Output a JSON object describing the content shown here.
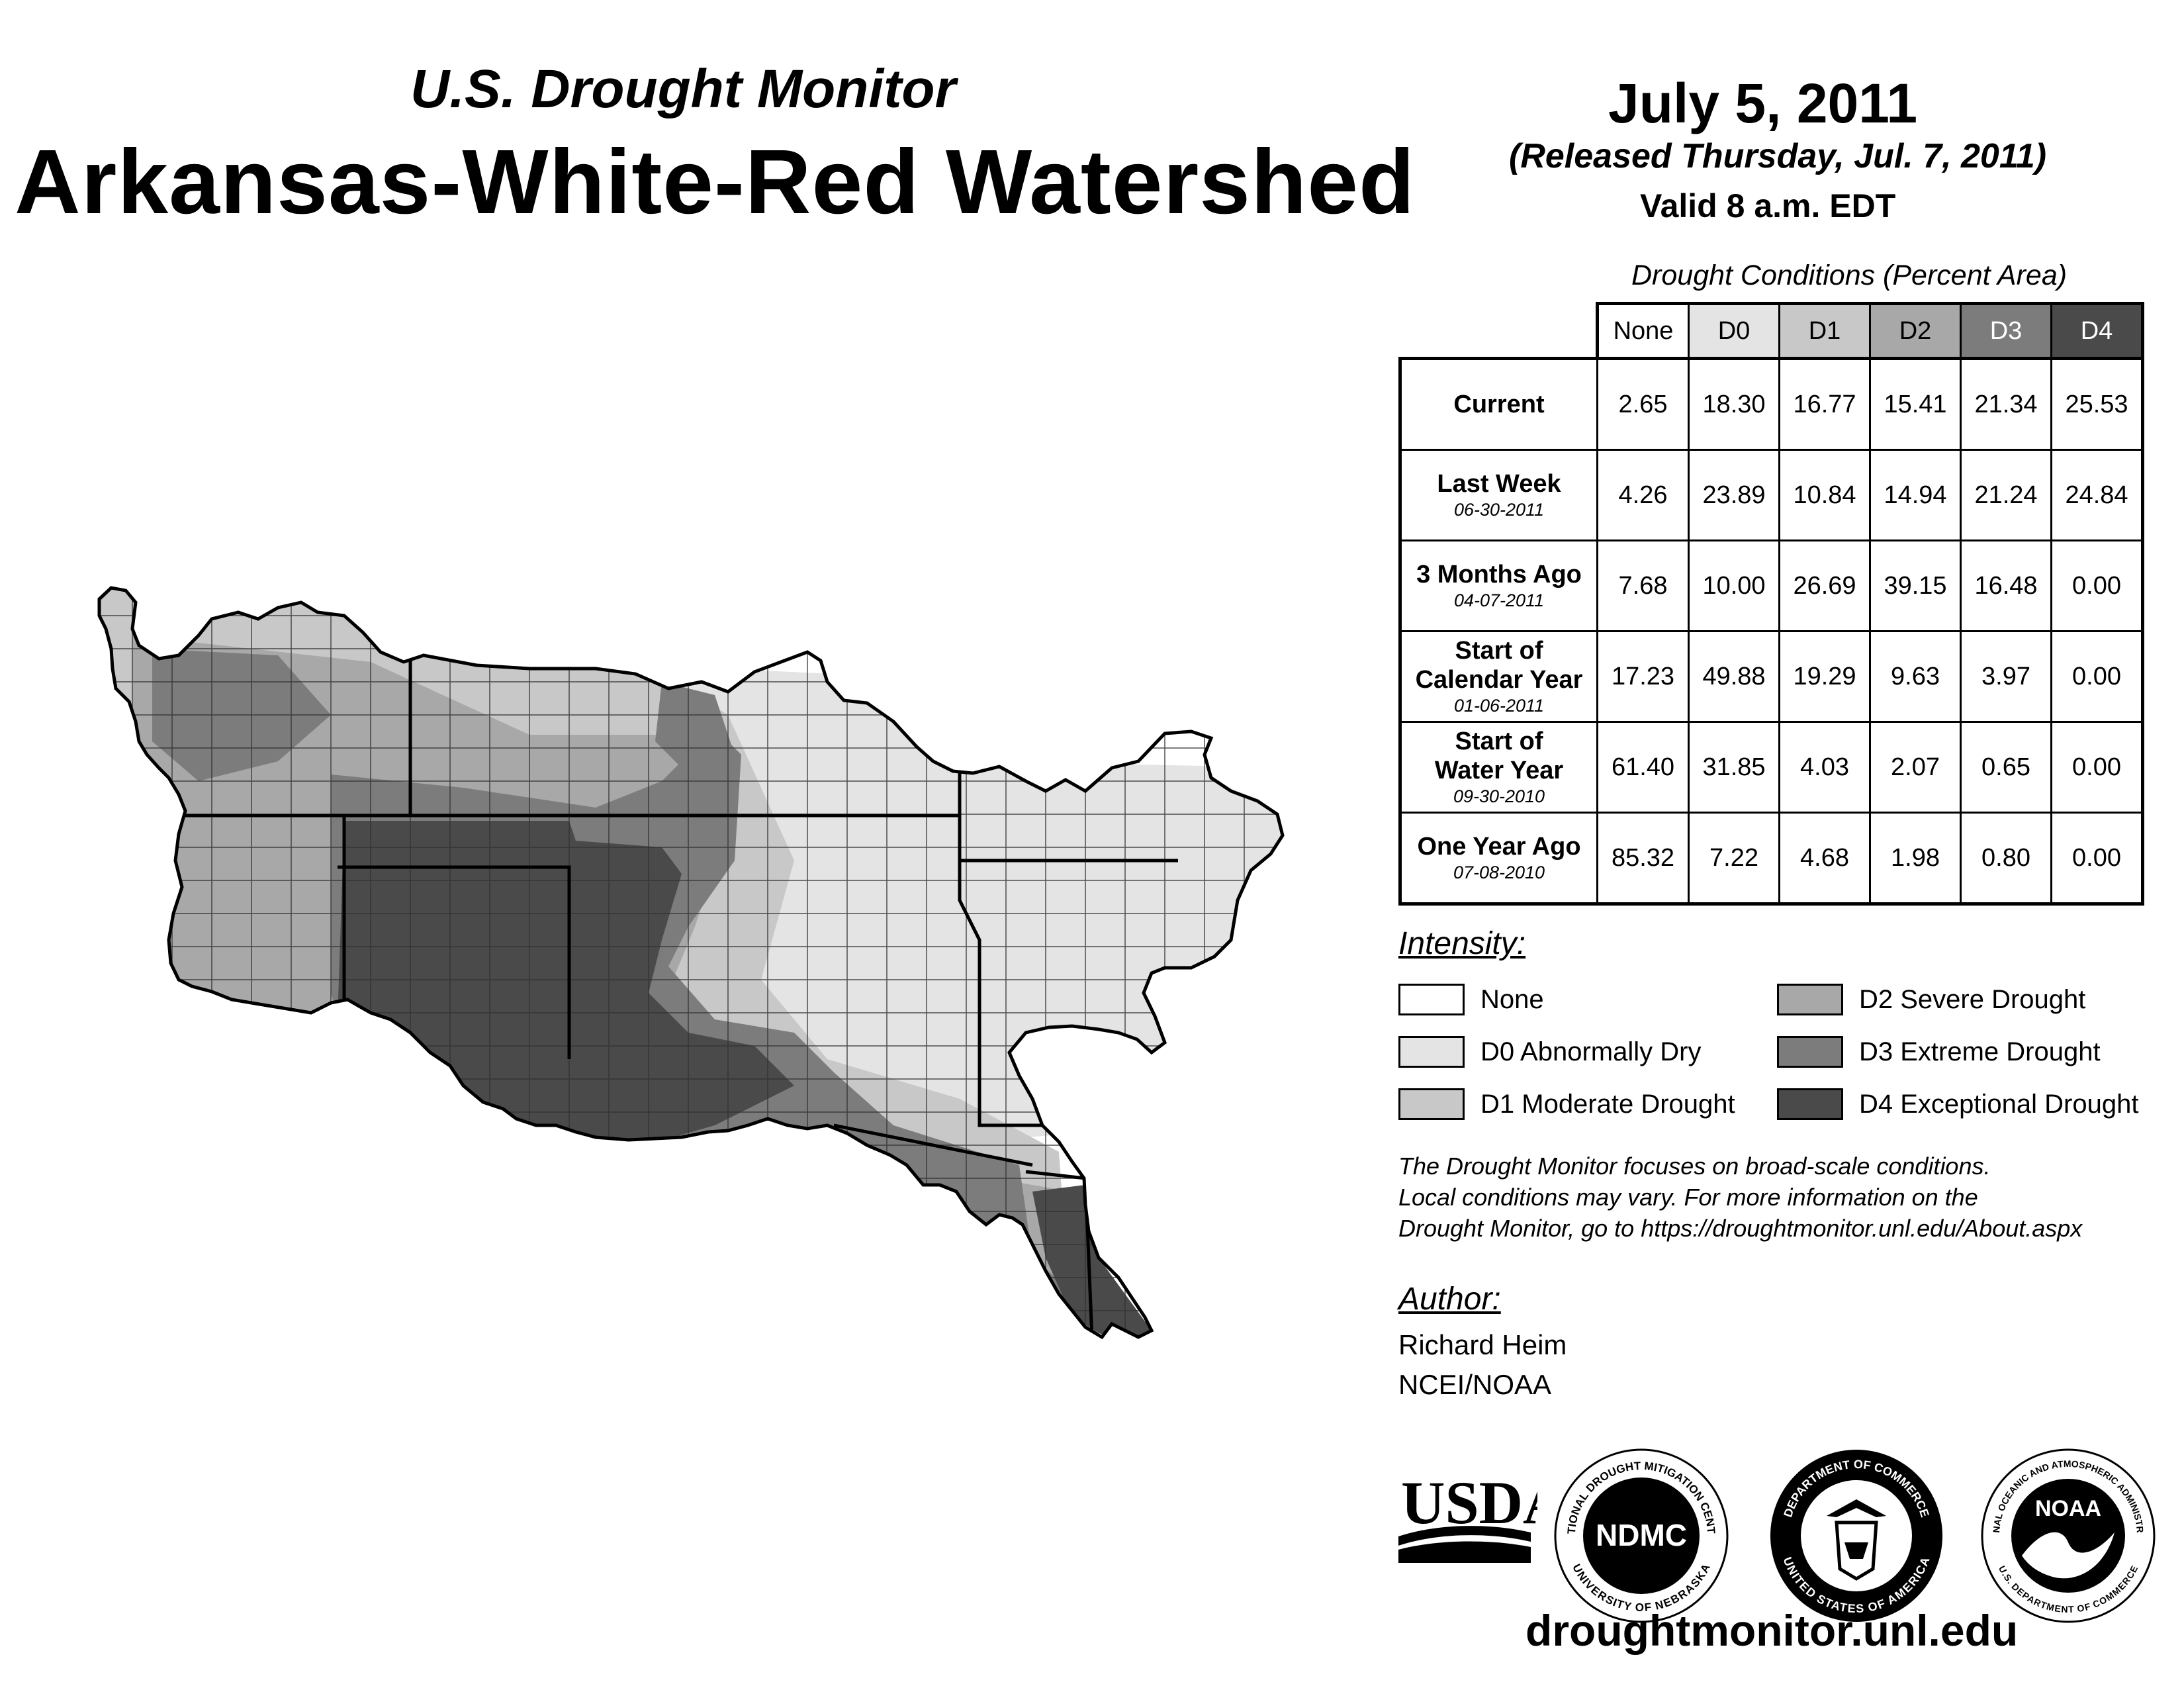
{
  "header": {
    "subtitle": "U.S. Drought Monitor",
    "title": "Arkansas-White-Red Watershed",
    "date": "July 5, 2011",
    "released": "(Released Thursday, Jul. 7, 2011)",
    "valid": "Valid 8 a.m. EDT"
  },
  "table": {
    "caption": "Drought Conditions (Percent Area)",
    "columns": [
      "None",
      "D0",
      "D1",
      "D2",
      "D3",
      "D4"
    ],
    "rows": [
      {
        "label": [
          "Current"
        ],
        "date": "",
        "values": [
          "2.65",
          "18.30",
          "16.77",
          "15.41",
          "21.34",
          "25.53"
        ]
      },
      {
        "label": [
          "Last Week"
        ],
        "date": "06-30-2011",
        "values": [
          "4.26",
          "23.89",
          "10.84",
          "14.94",
          "21.24",
          "24.84"
        ]
      },
      {
        "label": [
          "3 Months Ago"
        ],
        "date": "04-07-2011",
        "values": [
          "7.68",
          "10.00",
          "26.69",
          "39.15",
          "16.48",
          "0.00"
        ]
      },
      {
        "label": [
          "Start of",
          "Calendar Year"
        ],
        "date": "01-06-2011",
        "values": [
          "17.23",
          "49.88",
          "19.29",
          "9.63",
          "3.97",
          "0.00"
        ]
      },
      {
        "label": [
          "Start of",
          "Water Year"
        ],
        "date": "09-30-2010",
        "values": [
          "61.40",
          "31.85",
          "4.03",
          "2.07",
          "0.65",
          "0.00"
        ]
      },
      {
        "label": [
          "One Year Ago"
        ],
        "date": "07-08-2010",
        "values": [
          "85.32",
          "7.22",
          "4.68",
          "1.98",
          "0.80",
          "0.00"
        ]
      }
    ]
  },
  "legend": {
    "title": "Intensity:",
    "items": [
      {
        "label": "None",
        "color": "#ffffff"
      },
      {
        "label": "D0 Abnormally Dry",
        "color": "#e4e4e4"
      },
      {
        "label": "D1 Moderate Drought",
        "color": "#c8c8c8"
      },
      {
        "label": "D2 Severe Drought",
        "color": "#a8a8a8"
      },
      {
        "label": "D3 Extreme Drought",
        "color": "#7c7c7c"
      },
      {
        "label": "D4 Exceptional Drought",
        "color": "#4a4a4a"
      }
    ]
  },
  "note": {
    "line1": "The Drought Monitor focuses on broad-scale conditions.",
    "line2": "Local conditions may vary. For more information on the",
    "line3": "Drought Monitor, go to https://droughtmonitor.unl.edu/About.aspx"
  },
  "author": {
    "title": "Author:",
    "name": "Richard Heim",
    "org": "NCEI/NOAA"
  },
  "logos": {
    "usda": "USDA",
    "ndmc": "NDMC",
    "ndmc_ring_top": "NATIONAL DROUGHT MITIGATION CENTER",
    "ndmc_ring_bottom": "UNIVERSITY OF NEBRASKA",
    "doc_ring_top": "DEPARTMENT OF COMMERCE",
    "doc_ring_bottom": "UNITED STATES OF AMERICA",
    "noaa": "NOAA",
    "noaa_ring_top": "NATIONAL OCEANIC AND ATMOSPHERIC ADMINISTRATION",
    "noaa_ring_bottom": "U.S. DEPARTMENT OF COMMERCE"
  },
  "footer": {
    "url": "droughtmonitor.unl.edu"
  }
}
